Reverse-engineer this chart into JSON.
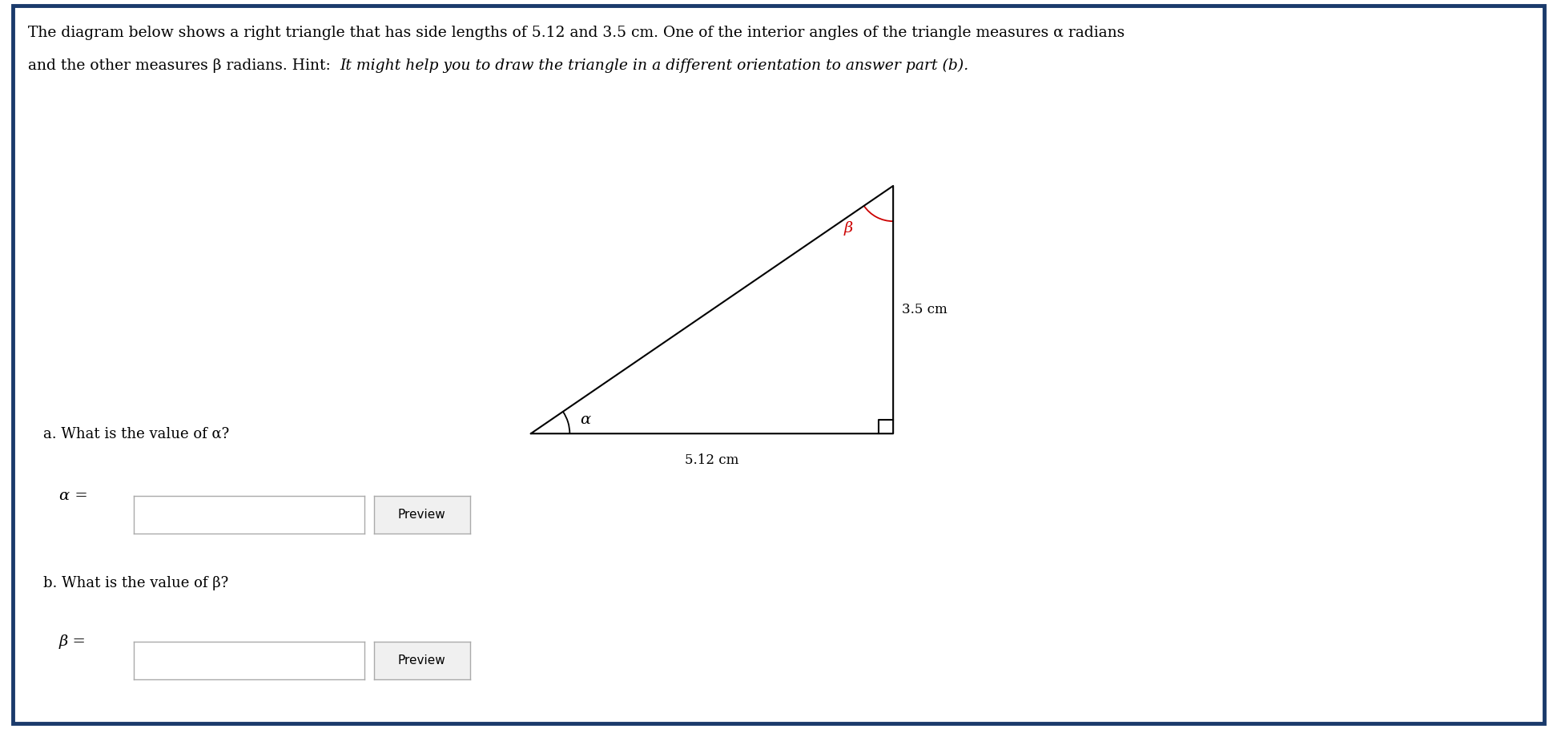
{
  "title_line1": "The diagram below shows a right triangle that has side lengths of 5.12 and 3.5 cm. One of the interior angles of the triangle measures α radians",
  "title_line2": "and the other measures β radians. Hint:   ",
  "title_hint": "It might help you to draw the triangle in a different orientation to answer part (b).",
  "background_color": "#ffffff",
  "border_color": "#1a3a6b",
  "label_512": "5.12 cm",
  "label_35": "3.5 cm",
  "label_alpha": "α",
  "label_beta": "β",
  "alpha_arc_color": "#000000",
  "beta_arc_color": "#cc0000",
  "question_a": "a. What is the value of α?",
  "question_b": "b. What is the value of β?",
  "alpha_eq": "α =",
  "beta_eq": "β =",
  "preview_button": "Preview",
  "font_size_title": 13.5,
  "font_size_question": 13,
  "font_size_label": 13
}
